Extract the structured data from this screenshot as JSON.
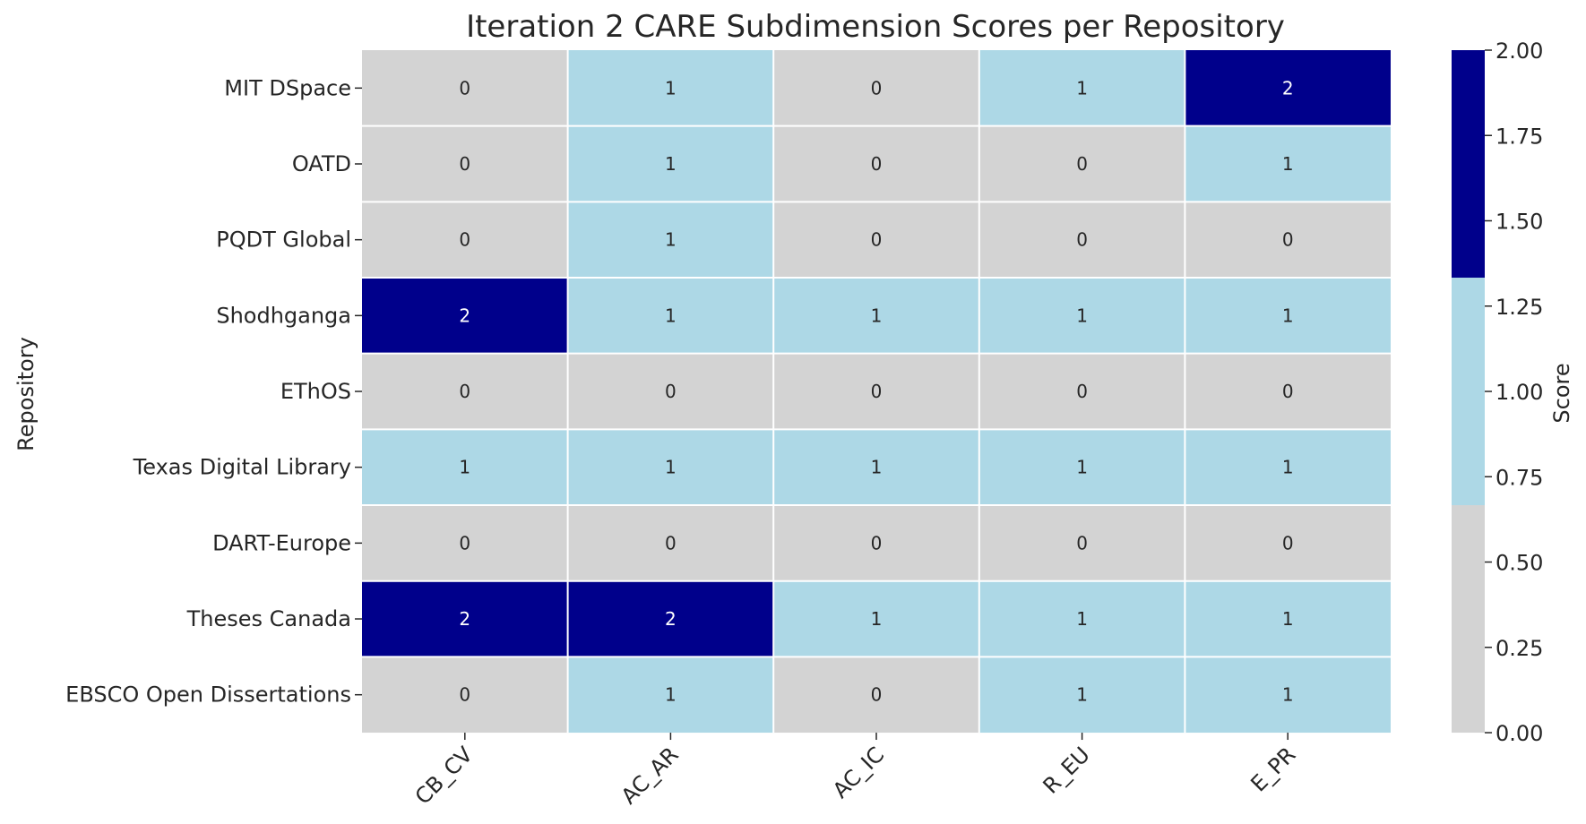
{
  "chart_data": {
    "type": "heatmap",
    "title": "Iteration 2 CARE Subdimension Scores per Repository",
    "ylabel": "Repository",
    "xlabel": "",
    "columns": [
      "CB_CV",
      "AC_AR",
      "AC_IC",
      "R_EU",
      "E_PR"
    ],
    "rows": [
      "MIT DSpace",
      "OATD",
      "PQDT Global",
      "Shodhganga",
      "EThOS",
      "Texas Digital Library",
      "DART-Europe",
      "Theses Canada",
      "EBSCO Open Dissertations"
    ],
    "values": [
      [
        0,
        1,
        0,
        1,
        2
      ],
      [
        0,
        1,
        0,
        0,
        1
      ],
      [
        0,
        1,
        0,
        0,
        0
      ],
      [
        2,
        1,
        1,
        1,
        1
      ],
      [
        0,
        0,
        0,
        0,
        0
      ],
      [
        1,
        1,
        1,
        1,
        1
      ],
      [
        0,
        0,
        0,
        0,
        0
      ],
      [
        2,
        2,
        1,
        1,
        1
      ],
      [
        0,
        1,
        0,
        1,
        1
      ]
    ],
    "colormap": [
      {
        "value": 0,
        "color": "#d3d3d3"
      },
      {
        "value": 1,
        "color": "#add8e6"
      },
      {
        "value": 2,
        "color": "#00008b"
      }
    ],
    "colorbar": {
      "label": "Score",
      "range": [
        0,
        2
      ],
      "ticks": [
        "0.00",
        "0.25",
        "0.50",
        "0.75",
        "1.00",
        "1.25",
        "1.50",
        "1.75",
        "2.00"
      ]
    },
    "annotation_colors": {
      "light": "#262626",
      "dark": "#ffffff"
    }
  }
}
